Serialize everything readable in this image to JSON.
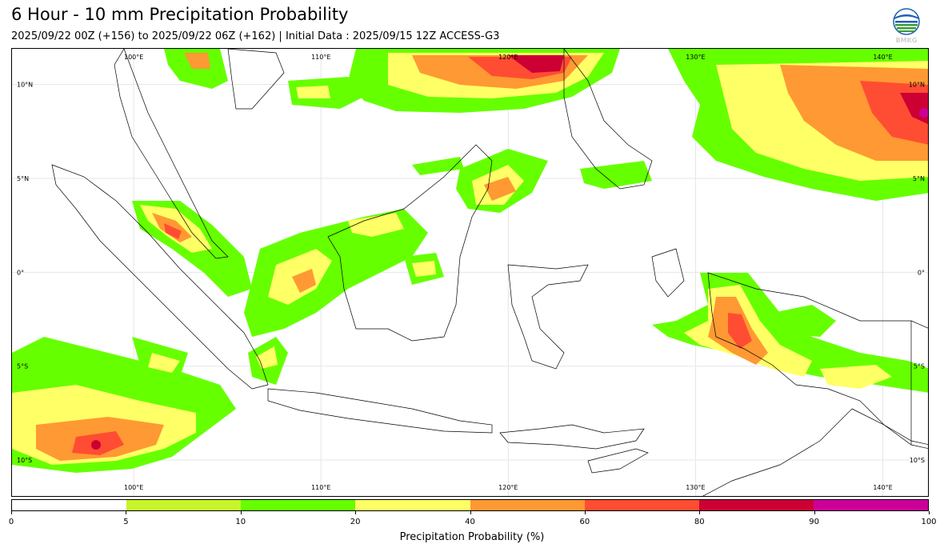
{
  "header": {
    "title": "6 Hour - 10 mm Precipitation Probability",
    "subtitle": "2025/09/22 00Z (+156) to 2025/09/22 06Z (+162) | Initial Data : 2025/09/15 12Z ACCESS-G3",
    "logo_text": "BMKG"
  },
  "map": {
    "lon_top_labels": [
      "100°E",
      "110°E",
      "120°E",
      "130°E",
      "140°E"
    ],
    "lon_bottom_labels": [
      "100°E",
      "110°E",
      "120°E",
      "130°E",
      "140°E"
    ],
    "lat_left_labels": [
      "10°N",
      "5°N",
      "0°",
      "5°S",
      "10°S"
    ],
    "lat_right_labels": [
      "10°N",
      "5°N",
      "0°",
      "5°S",
      "10°S"
    ],
    "lon_range": [
      93.5,
      142.5
    ],
    "lat_range": [
      -12,
      11.9
    ],
    "colors": {
      "p5_10": "#c6f52b",
      "p10_20": "#66ff00",
      "p20_40": "#ffff66",
      "p40_60": "#ff9933",
      "p60_80": "#ff4d33",
      "p80_90": "#cc0033",
      "p90_100": "#cc0099"
    }
  },
  "colorbar": {
    "label": "Precipitation Probability (%)",
    "ticks": [
      "0",
      "5",
      "10",
      "20",
      "40",
      "60",
      "80",
      "90",
      "100"
    ],
    "colors": [
      "#ffffff",
      "#c6f52b",
      "#66ff00",
      "#ffff66",
      "#ff9933",
      "#ff4d33",
      "#cc0033",
      "#cc0099"
    ]
  }
}
